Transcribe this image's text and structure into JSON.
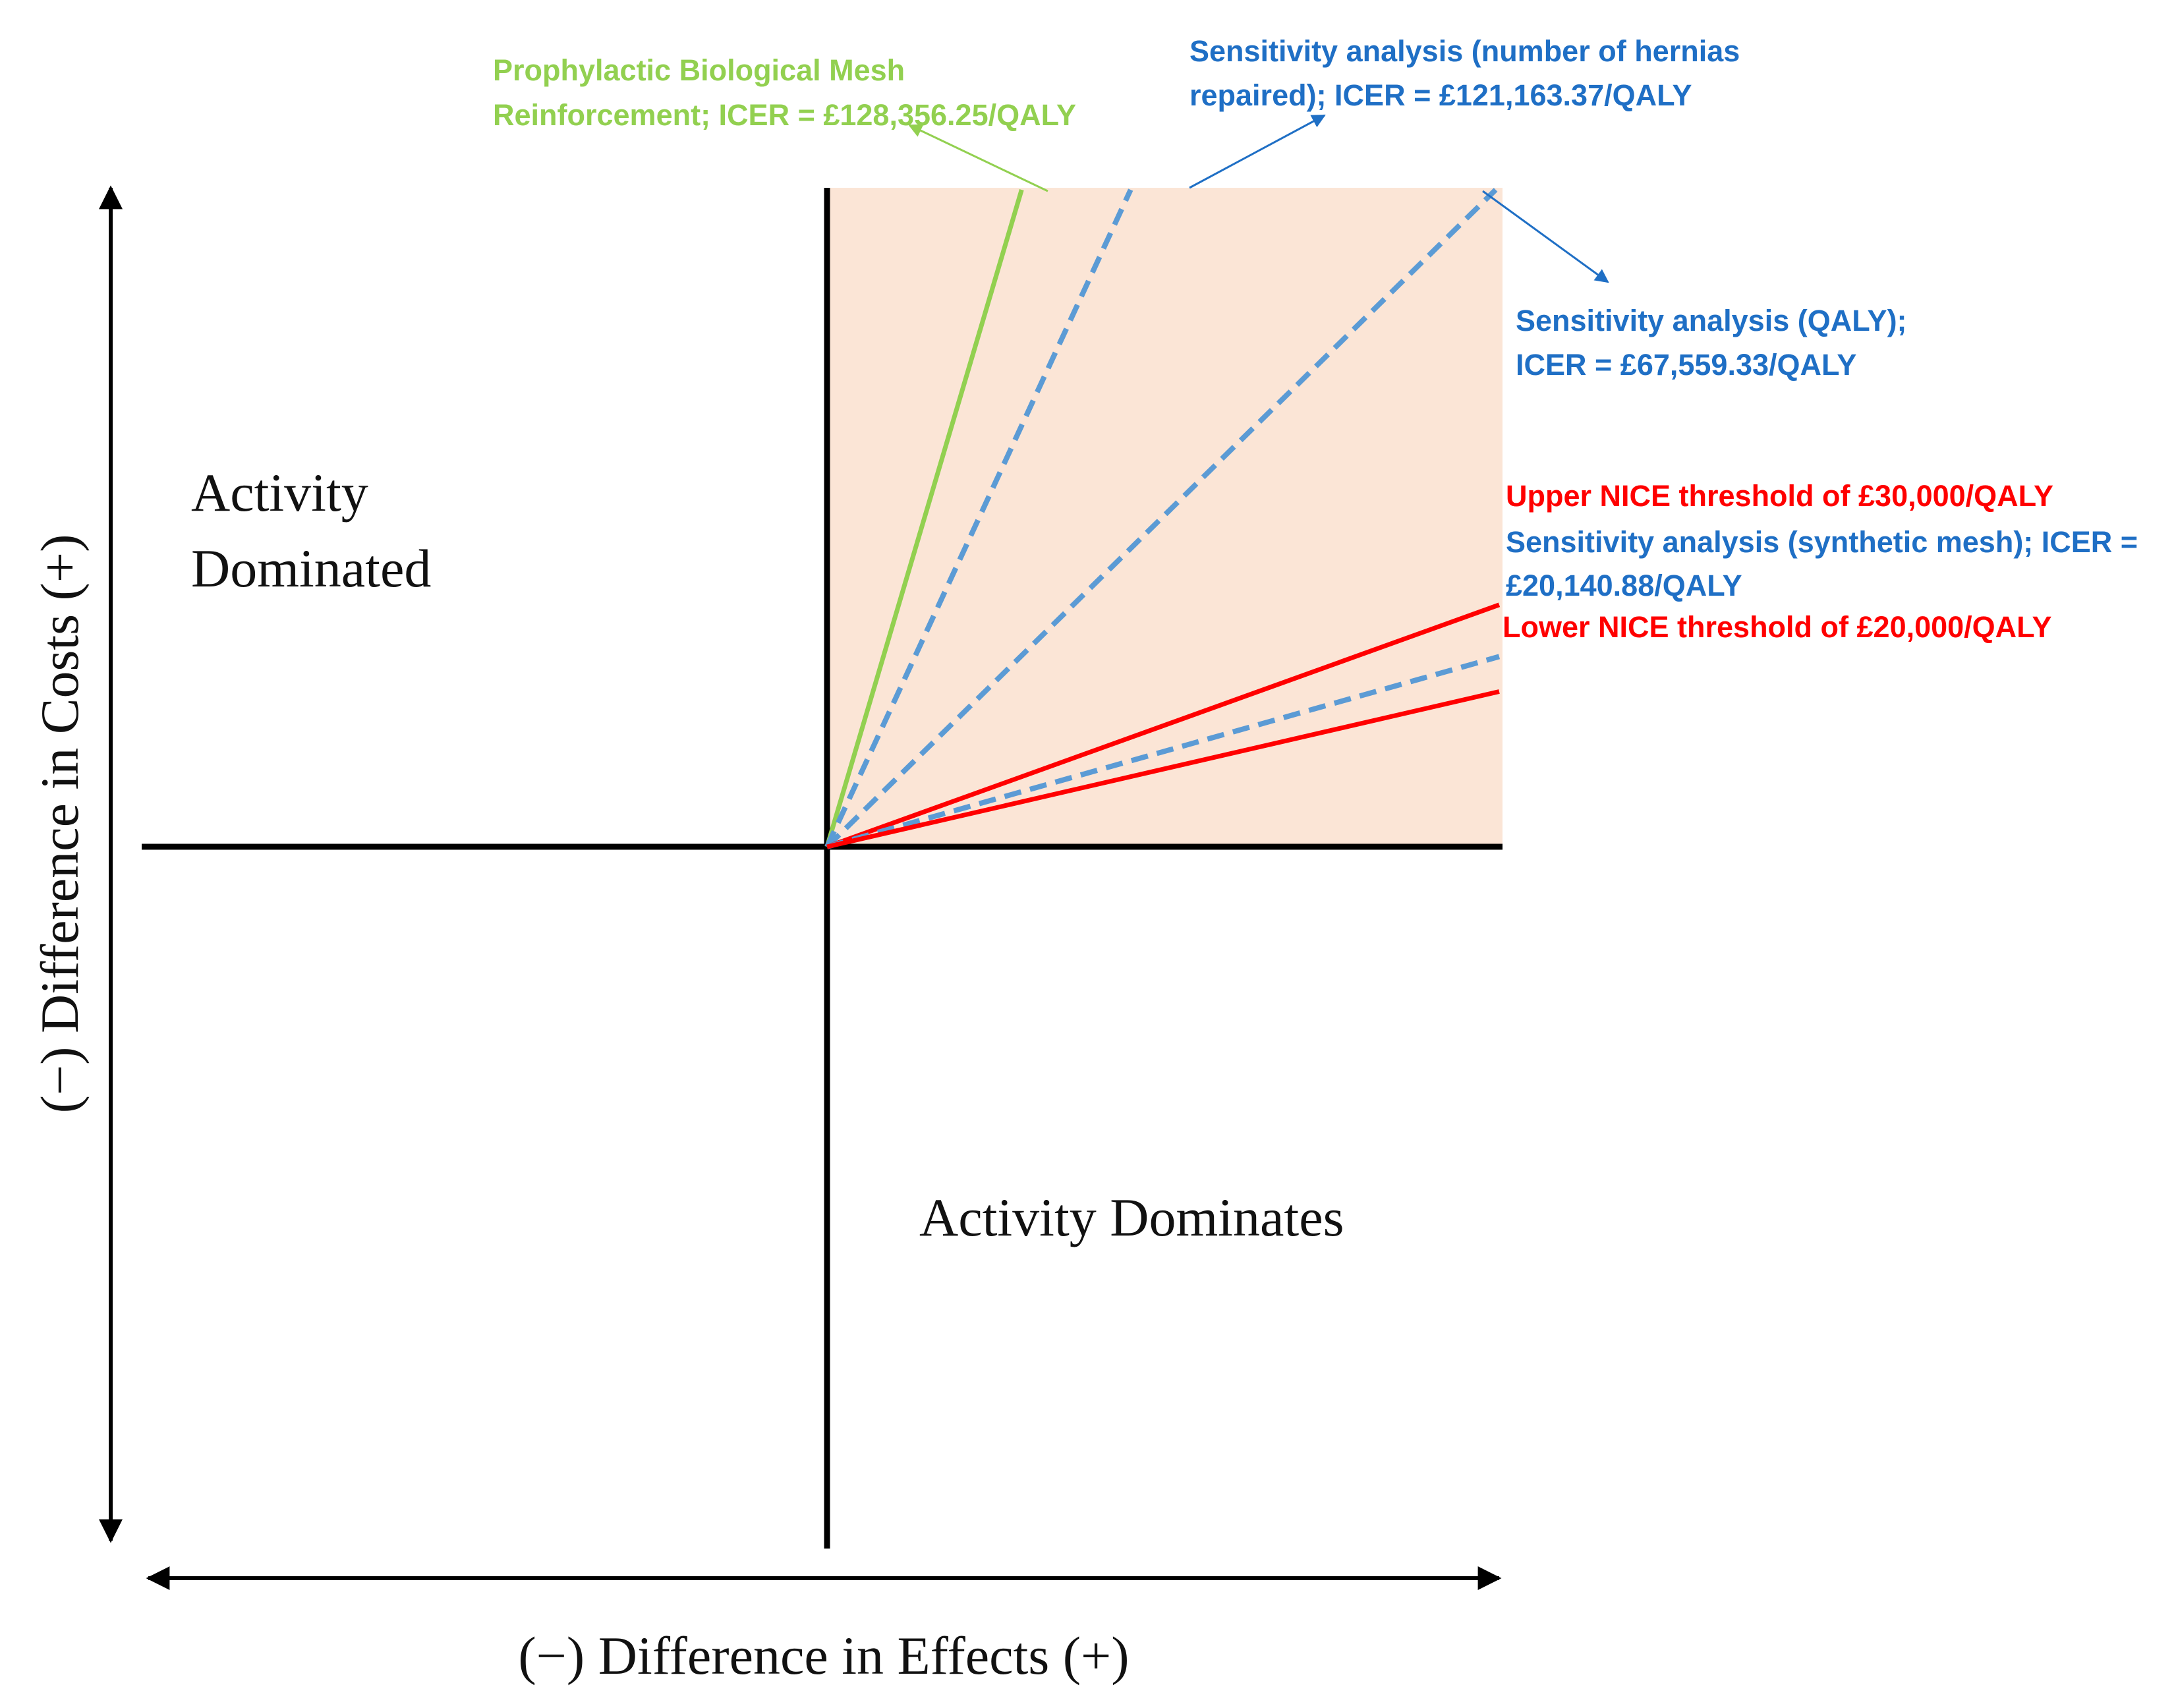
{
  "chart_data": {
    "type": "cost-effectiveness-plane",
    "xlabel": "(−) Difference in Effects (+)",
    "ylabel": "(−) Difference in Costs (+)",
    "quadrants": {
      "dominated": [
        "Activity",
        "Dominated"
      ],
      "dominates": "Activity Dominates"
    },
    "colors": {
      "intervention": "#92d050",
      "sensitivity": "#5b9bd5",
      "sensitivity_text": "#1f6fc5",
      "threshold": "#ff0000",
      "shade": "#fbe5d6",
      "axes": "#000000"
    },
    "series": [
      {
        "key": "intervention",
        "name": "Prophylactic Biological Mesh Reinforcement",
        "icer": 128356.25,
        "style": "solid",
        "color": "#92d050",
        "label": [
          "Prophylactic Biological Mesh",
          "Reinforcement; ICER = £128,356.25/QALY"
        ]
      },
      {
        "key": "sens_hernias",
        "name": "Sensitivity analysis (number of hernias repaired)",
        "icer": 121163.37,
        "style": "dashed",
        "color": "#5b9bd5",
        "label": [
          "Sensitivity analysis (number of hernias",
          "repaired); ICER = £121,163.37/QALY"
        ]
      },
      {
        "key": "sens_qaly",
        "name": "Sensitivity analysis (QALY)",
        "icer": 67559.33,
        "style": "dashed",
        "color": "#5b9bd5",
        "label": [
          "Sensitivity analysis (QALY);",
          "ICER = £67,559.33/QALY"
        ]
      },
      {
        "key": "upper_nice",
        "name": "Upper NICE threshold",
        "icer": 30000,
        "style": "solid",
        "color": "#ff0000",
        "label": [
          "Upper NICE threshold of £30,000/QALY"
        ]
      },
      {
        "key": "sens_synthetic",
        "name": "Sensitivity analysis (synthetic mesh)",
        "icer": 20140.88,
        "style": "dashed",
        "color": "#5b9bd5",
        "label": [
          "Sensitivity analysis (synthetic mesh); ICER =",
          "£20,140.88/QALY"
        ]
      },
      {
        "key": "lower_nice",
        "name": "Lower NICE threshold",
        "icer": 20000,
        "style": "solid",
        "color": "#ff0000",
        "label": [
          "Lower NICE threshold of £20,000/QALY"
        ]
      }
    ]
  }
}
